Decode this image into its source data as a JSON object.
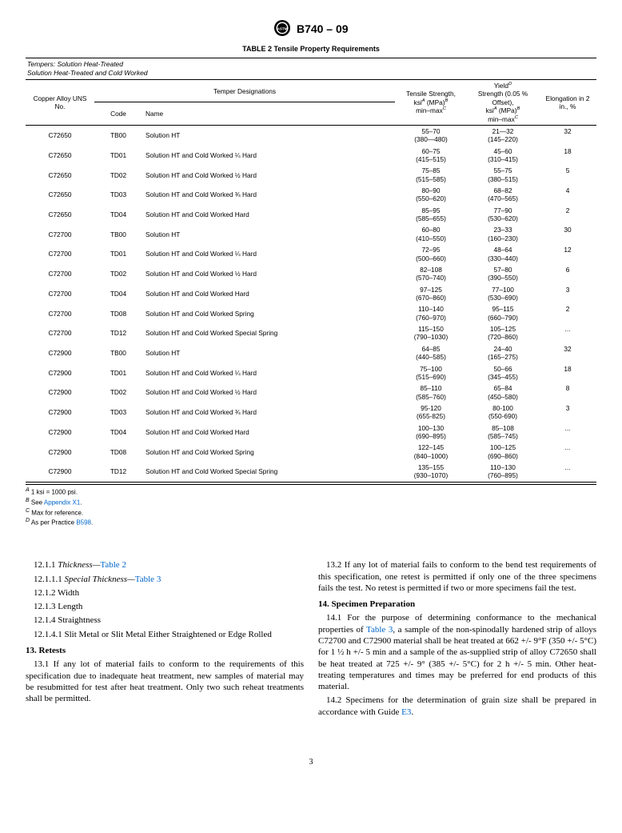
{
  "header": {
    "doc_id": "B740 – 09"
  },
  "table": {
    "title": "TABLE 2 Tensile Property Requirements",
    "tempers_note_label": "Tempers:",
    "tempers_note_1": " Solution Heat-Treated",
    "tempers_note_2": "Solution Heat-Treated and Cold Worked",
    "col_alloy": "Copper Alloy UNS No.",
    "col_temper": "Temper Designations",
    "col_code": "Code",
    "col_name": "Name",
    "col_tensile_1": "Tensile Strength,",
    "col_tensile_2": "ksi",
    "col_tensile_3": " (MPa)",
    "col_tensile_4": "min–max",
    "col_yield_1": "Yield",
    "col_yield_2": " Strength (0.05 % Offset),",
    "col_yield_3": "ksi",
    "col_yield_4": " (MPa)",
    "col_yield_5": "min–max",
    "col_elong": "Elongation in 2 in., %",
    "rows": [
      {
        "alloy": "C72650",
        "code": "TB00",
        "name": "Solution HT",
        "t1": "55–70",
        "t2": "(380—480)",
        "y1": "21—32",
        "y2": "(145–220)",
        "e": "32"
      },
      {
        "alloy": "C72650",
        "code": "TD01",
        "name": "Solution HT and Cold Worked ¼ Hard",
        "t1": "60–75",
        "t2": "(415–515)",
        "y1": "45–60",
        "y2": "(310–415)",
        "e": "18"
      },
      {
        "alloy": "C72650",
        "code": "TD02",
        "name": "Solution HT and Cold Worked ½ Hard",
        "t1": "75–85",
        "t2": "(515–585)",
        "y1": "55–75",
        "y2": "(380–515)",
        "e": "5"
      },
      {
        "alloy": "C72650",
        "code": "TD03",
        "name": "Solution HT and Cold Worked ¾ Hard",
        "t1": "80–90",
        "t2": "(550–620)",
        "y1": "68–82",
        "y2": "(470–565)",
        "e": "4"
      },
      {
        "alloy": "C72650",
        "code": "TD04",
        "name": "Solution HT and Cold Worked Hard",
        "t1": "85–95",
        "t2": "(585–655)",
        "y1": "77–90",
        "y2": "(530–620)",
        "e": "2"
      },
      {
        "alloy": "C72700",
        "code": "TB00",
        "name": "Solution HT",
        "t1": "60–80",
        "t2": "(410–550)",
        "y1": "23–33",
        "y2": "(160–230)",
        "e": "30"
      },
      {
        "alloy": "C72700",
        "code": "TD01",
        "name": "Solution HT and Cold Worked ¼ Hard",
        "t1": "72–95",
        "t2": "(500–660)",
        "y1": "48–64",
        "y2": "(330–440)",
        "e": "12"
      },
      {
        "alloy": "C72700",
        "code": "TD02",
        "name": "Solution HT and Cold Worked ½ Hard",
        "t1": "82–108",
        "t2": "(570–740)",
        "y1": "57–80",
        "y2": "(390–550)",
        "e": "6"
      },
      {
        "alloy": "C72700",
        "code": "TD04",
        "name": "Solution HT and Cold Worked Hard",
        "t1": "97–125",
        "t2": "(670–860)",
        "y1": "77–100",
        "y2": "(530–690)",
        "e": "3"
      },
      {
        "alloy": "C72700",
        "code": "TD08",
        "name": "Solution HT and Cold Worked Spring",
        "t1": "110–140",
        "t2": "(760–970)",
        "y1": "95–115",
        "y2": "(660–790)",
        "e": "2"
      },
      {
        "alloy": "C72700",
        "code": "TD12",
        "name": "Solution HT and Cold Worked Special Spring",
        "t1": "115–150",
        "t2": "(790–1030)",
        "y1": "105–125",
        "y2": "(720–860)",
        "e": "..."
      },
      {
        "alloy": "C72900",
        "code": "TB00",
        "name": "Solution HT",
        "t1": "64–85",
        "t2": "(440–585)",
        "y1": "24–40",
        "y2": "(165–275)",
        "e": "32"
      },
      {
        "alloy": "C72900",
        "code": "TD01",
        "name": "Solution HT and Cold Worked ¼ Hard",
        "t1": "75–100",
        "t2": "(515–690)",
        "y1": "50–66",
        "y2": "(345–455)",
        "e": "18"
      },
      {
        "alloy": "C72900",
        "code": "TD02",
        "name": "Solution HT and Cold Worked ½ Hard",
        "t1": "85–110",
        "t2": "(585–760)",
        "y1": "65–84",
        "y2": "(450–580)",
        "e": "8"
      },
      {
        "alloy": "C72900",
        "code": "TD03",
        "name": "Solution HT and Cold Worked ¾ Hard",
        "t1": "95-120",
        "t2": "(655-825)",
        "y1": "80-100",
        "y2": "(550-690)",
        "e": "3"
      },
      {
        "alloy": "C72900",
        "code": "TD04",
        "name": "Solution HT and Cold Worked Hard",
        "t1": "100–130",
        "t2": "(690–895)",
        "y1": "85–108",
        "y2": "(585–745)",
        "e": "..."
      },
      {
        "alloy": "C72900",
        "code": "TD08",
        "name": "Solution HT and Cold Worked Spring",
        "t1": "122–145",
        "t2": "(840–1000)",
        "y1": "100–125",
        "y2": "(690–860)",
        "e": "..."
      },
      {
        "alloy": "C72900",
        "code": "TD12",
        "name": "Solution HT and Cold Worked Special Spring",
        "t1": "135–155",
        "t2": "(930–1070)",
        "y1": "110–130",
        "y2": "(760–895)",
        "e": "..."
      }
    ],
    "fn_a": " 1 ksi = 1000 psi.",
    "fn_b_1": " See ",
    "fn_b_2": "Appendix X1",
    "fn_b_3": ".",
    "fn_c": " Max for reference.",
    "fn_d_1": " As per Practice ",
    "fn_d_2": "B598",
    "fn_d_3": "."
  },
  "body": {
    "l1_1": "12.1.1 ",
    "l1_2": "Thickness—",
    "l1_3": "Table 2",
    "l2_1": "12.1.1.1 ",
    "l2_2": "Special Thickness—",
    "l2_3": "Table 3",
    "l3": "12.1.2 Width",
    "l4": "12.1.3 Length",
    "l5": "12.1.4 Straightness",
    "l6": "12.1.4.1 Slit Metal or Slit Metal Either Straightened or Edge Rolled",
    "s13_head": "13. Retests",
    "s13_1": "13.1 If any lot of material fails to conform to the requirements of this specification due to inadequate heat treatment, new samples of material may be resubmitted for test after heat treatment. Only two such reheat treatments shall be permitted.",
    "s13_2": "13.2 If any lot of material fails to conform to the bend test requirements of this specification, one retest is permitted if only one of the three specimens fails the test. No retest is permitted if two or more specimens fail the test.",
    "s14_head": "14. Specimen Preparation",
    "s14_1a": "14.1 For the purpose of determining conformance to the mechanical properties of ",
    "s14_1b": "Table 3",
    "s14_1c": ", a sample of the non-spinodally hardened strip of alloys C72700 and C72900 material shall be heat treated at 662 +/- 9°F (350 +/- 5°C) for 1 ½ h +/- 5 min and a sample of the as-supplied strip of alloy C72650 shall be heat treated at 725 +/- 9° (385 +/- 5°C) for 2 h +/- 5 min. Other heat-treating temperatures and times may be preferred for end products of this material.",
    "s14_2a": "14.2 Specimens for the determination of grain size shall be prepared in accordance with Guide ",
    "s14_2b": "E3",
    "s14_2c": "."
  },
  "page_number": "3"
}
